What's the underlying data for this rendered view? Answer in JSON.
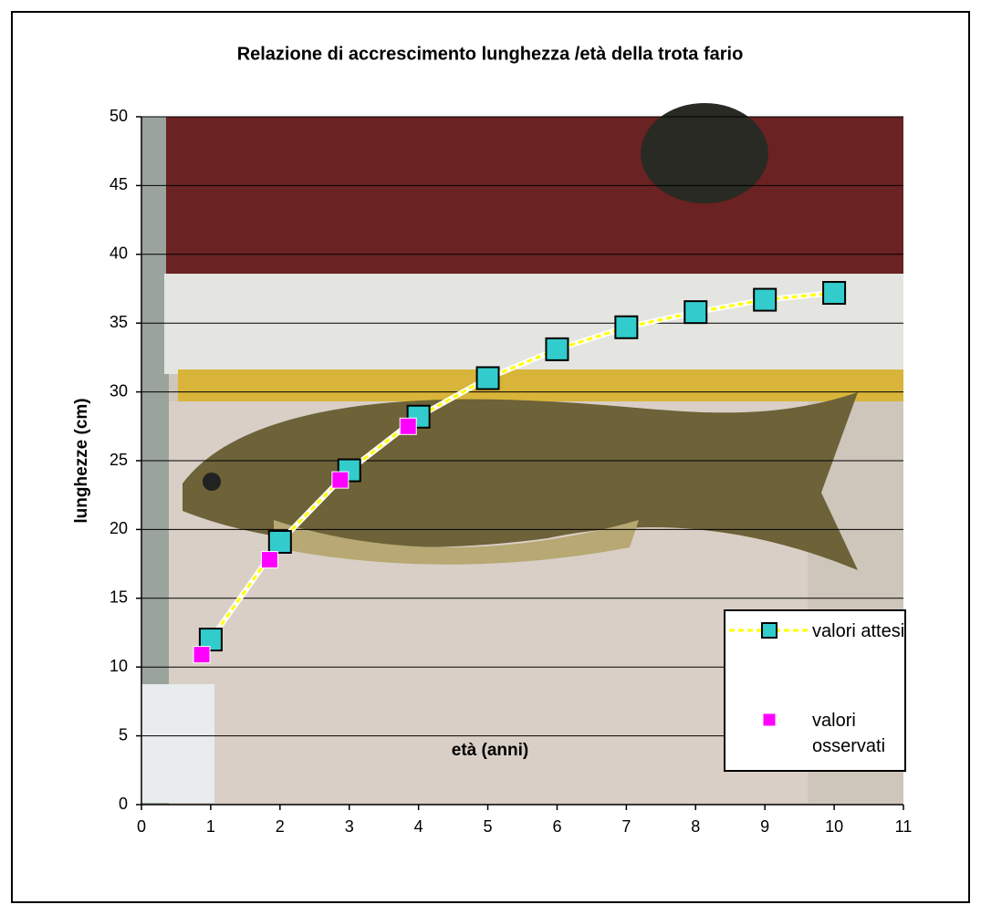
{
  "chart_data": {
    "type": "scatter",
    "title": "Relazione di accrescimento lunghezza /età della trota fario",
    "x_label": "età (anni)",
    "y_label": "lunghezze (cm)",
    "xlim": [
      0,
      11
    ],
    "xticks": [
      0,
      1,
      2,
      3,
      4,
      5,
      6,
      7,
      8,
      9,
      10,
      11
    ],
    "ylim": [
      0,
      50
    ],
    "yticks": [
      0,
      5,
      10,
      15,
      20,
      25,
      30,
      35,
      40,
      45,
      50
    ],
    "grid": true,
    "legend": "lower right",
    "series": [
      {
        "name": "valori attesi",
        "color": "#33cccc",
        "line": true,
        "line_color": "#ffff00",
        "x": [
          1,
          2,
          3,
          4,
          5,
          6,
          7,
          8,
          9,
          10
        ],
        "values": [
          12.0,
          19.1,
          24.3,
          28.2,
          31.0,
          33.1,
          34.7,
          35.8,
          36.7,
          37.2
        ]
      },
      {
        "name": "valori osservati",
        "color": "#ff00ff",
        "line": false,
        "x": [
          0.87,
          1.85,
          2.87,
          3.85
        ],
        "values": [
          10.9,
          17.8,
          23.6,
          27.5
        ]
      }
    ]
  }
}
